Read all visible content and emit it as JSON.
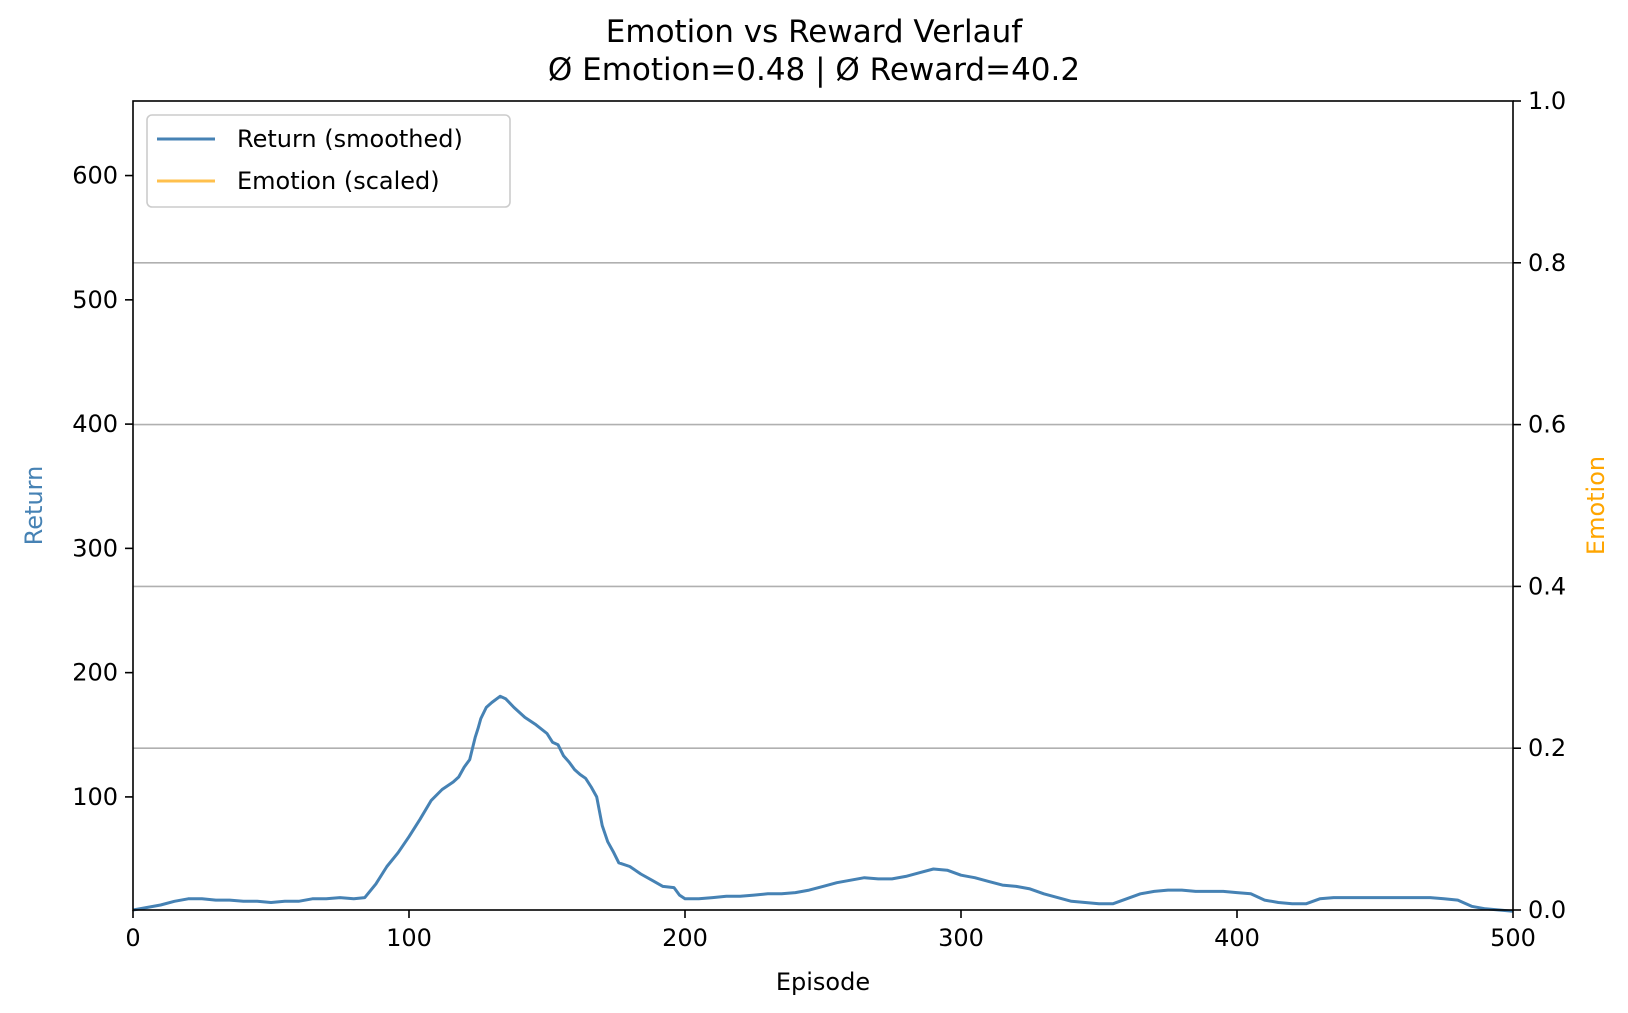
{
  "chart_data": {
    "type": "line",
    "title": "Emotion vs Reward Verlauf",
    "subtitle": "Ø Emotion=0.48 | Ø Reward=40.2",
    "xlabel": "Episode",
    "ylabel": "Return",
    "ylabel_right": "Emotion",
    "xlim": [
      0,
      500
    ],
    "ylim": [
      9,
      660
    ],
    "ylim_right": [
      0,
      1.0
    ],
    "x_ticks": [
      0,
      100,
      200,
      300,
      400,
      500
    ],
    "x_tick_labels": [
      "0",
      "100",
      "200",
      "300",
      "400",
      "500"
    ],
    "y_ticks": [
      100,
      200,
      300,
      400,
      500,
      600
    ],
    "y_tick_labels": [
      "100",
      "200",
      "300",
      "400",
      "500",
      "600"
    ],
    "y_right_ticks": [
      0.0,
      0.2,
      0.4,
      0.6,
      0.8,
      1.0
    ],
    "y_right_tick_labels": [
      "0.0",
      "0.2",
      "0.4",
      "0.6",
      "0.8",
      "1.0"
    ],
    "grid": "horizontal, right axis ticks",
    "legend_position": "top-left",
    "colors": {
      "return": "#4682b4",
      "emotion": "#ffc04d",
      "emotion_label": "#ffa500",
      "grid": "#b0b0b0"
    },
    "series": [
      {
        "name": "Return (smoothed)",
        "axis": "left",
        "x": [
          0,
          5,
          10,
          15,
          20,
          25,
          30,
          35,
          40,
          45,
          50,
          55,
          60,
          65,
          70,
          75,
          80,
          84,
          88,
          92,
          96,
          100,
          104,
          108,
          112,
          116,
          118,
          120,
          122,
          124,
          125,
          126,
          128,
          130,
          133,
          135,
          138,
          142,
          146,
          150,
          152,
          154,
          156,
          158,
          160,
          162,
          164,
          166,
          168,
          170,
          172,
          174,
          176,
          180,
          184,
          188,
          192,
          196,
          198,
          200,
          202,
          205,
          210,
          215,
          220,
          225,
          230,
          235,
          240,
          245,
          250,
          255,
          260,
          265,
          270,
          275,
          280,
          285,
          290,
          295,
          300,
          305,
          310,
          315,
          320,
          325,
          330,
          335,
          340,
          345,
          350,
          355,
          360,
          365,
          370,
          375,
          380,
          385,
          390,
          395,
          400,
          405,
          410,
          415,
          420,
          425,
          430,
          435,
          440,
          445,
          450,
          455,
          460,
          465,
          470,
          475,
          480,
          485,
          490,
          495,
          500
        ],
        "y": [
          9,
          11,
          13,
          16,
          18,
          18,
          17,
          17,
          16,
          16,
          15,
          16,
          16,
          18,
          18,
          19,
          18,
          19,
          30,
          44,
          55,
          68,
          82,
          97,
          106,
          112,
          116,
          124,
          130,
          148,
          155,
          163,
          172,
          176,
          181,
          179,
          172,
          164,
          158,
          151,
          144,
          142,
          133,
          128,
          122,
          118,
          115,
          108,
          100,
          77,
          64,
          56,
          47,
          44,
          38,
          33,
          28,
          27,
          21,
          18,
          18,
          18,
          19,
          20,
          20,
          21,
          22,
          22,
          23,
          25,
          28,
          31,
          33,
          35,
          34,
          34,
          36,
          39,
          42,
          41,
          37,
          35,
          32,
          29,
          28,
          26,
          22,
          19,
          16,
          15,
          14,
          14,
          18,
          22,
          24,
          25,
          25,
          24,
          24,
          24,
          23,
          22,
          17,
          15,
          14,
          14,
          18,
          19,
          19,
          19,
          19,
          19,
          19,
          19,
          19,
          18,
          17,
          12,
          10,
          9,
          8
        ]
      },
      {
        "name": "Emotion (scaled)",
        "axis": "right",
        "x": [],
        "y": []
      }
    ]
  }
}
